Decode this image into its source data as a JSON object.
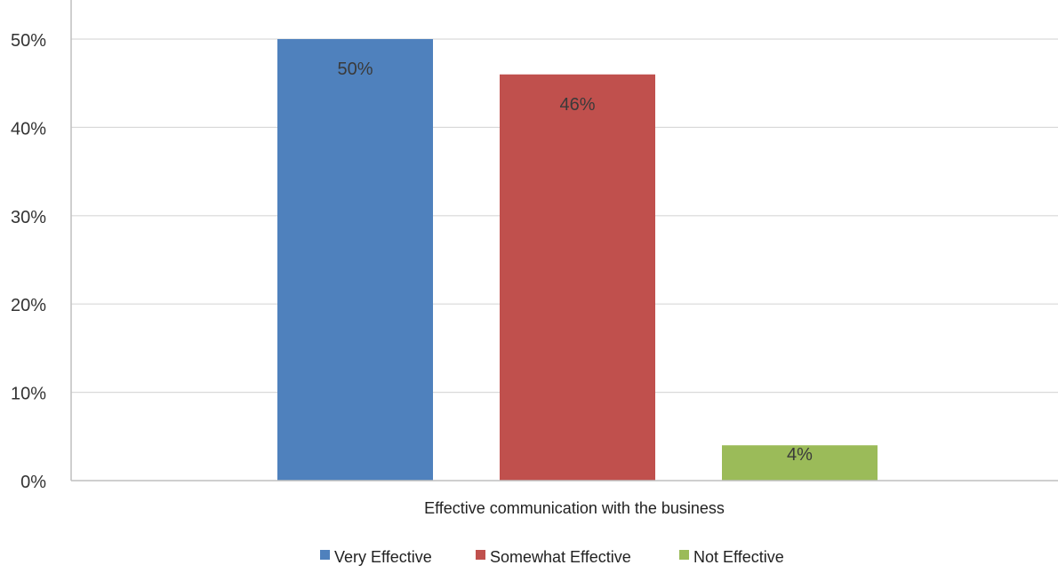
{
  "chart_data": {
    "type": "bar",
    "categories": [
      "Effective communication with the business"
    ],
    "series": [
      {
        "name": "Very Effective",
        "values": [
          50
        ],
        "label": "50%",
        "color": "#4F81BD"
      },
      {
        "name": "Somewhat Effective",
        "values": [
          46
        ],
        "label": "46%",
        "color": "#C0504D"
      },
      {
        "name": "Not Effective",
        "values": [
          4
        ],
        "label": "4%",
        "color": "#9BBB59"
      }
    ],
    "y_ticks": [
      "0%",
      "10%",
      "20%",
      "30%",
      "40%",
      "50%"
    ],
    "ylim": [
      0,
      54
    ],
    "grid": true,
    "legend_position": "bottom",
    "title": "",
    "xlabel": "",
    "ylabel": ""
  }
}
